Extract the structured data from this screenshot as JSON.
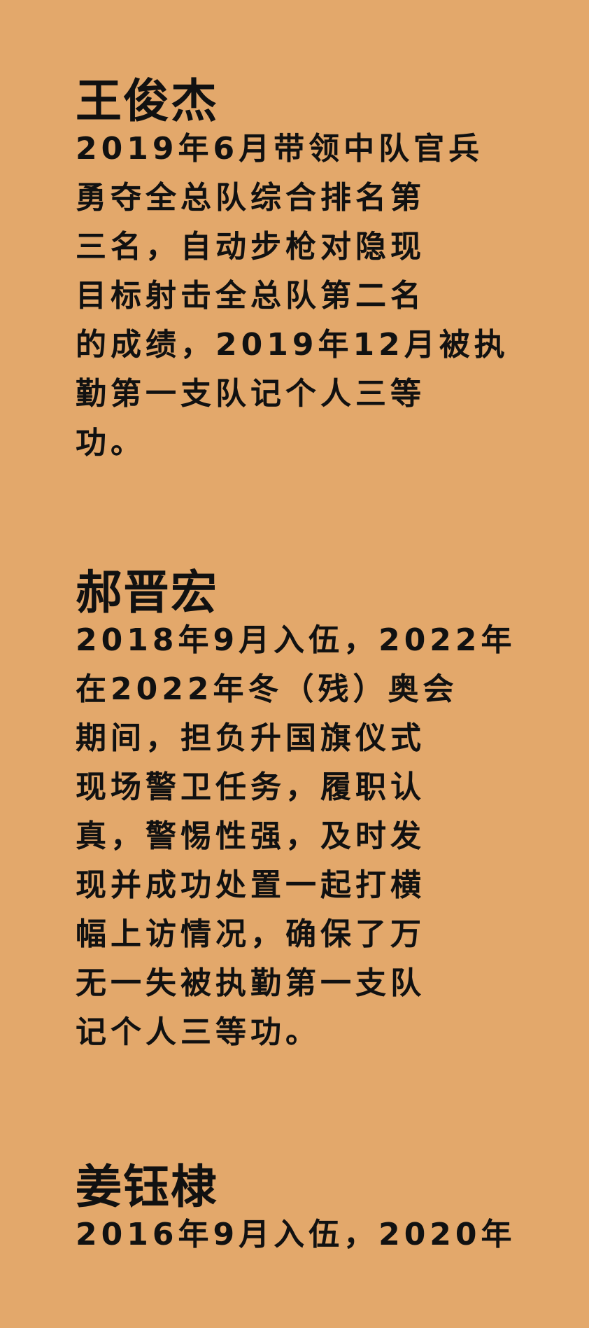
{
  "entries": [
    {
      "name": "王俊杰",
      "lines": [
        "2019年6月带领中队官兵",
        "勇夺全总队综合排名第",
        "三名，自动步枪对隐现",
        "目标射击全总队第二名",
        "的成绩，2019年12月被执",
        "勤第一支队记个人三等",
        "功。"
      ]
    },
    {
      "name": "郝晋宏",
      "lines": [
        "2018年9月入伍，2022年",
        "在2022年冬（残）奥会",
        "期间，担负升国旗仪式",
        "现场警卫任务，履职认",
        "真，警惕性强，及时发",
        "现并成功处置一起打横",
        "幅上访情况，确保了万",
        "无一失被执勤第一支队",
        "记个人三等功。"
      ]
    },
    {
      "name": "姜钰棣",
      "lines": [
        "2016年9月入伍，2020年"
      ]
    }
  ]
}
